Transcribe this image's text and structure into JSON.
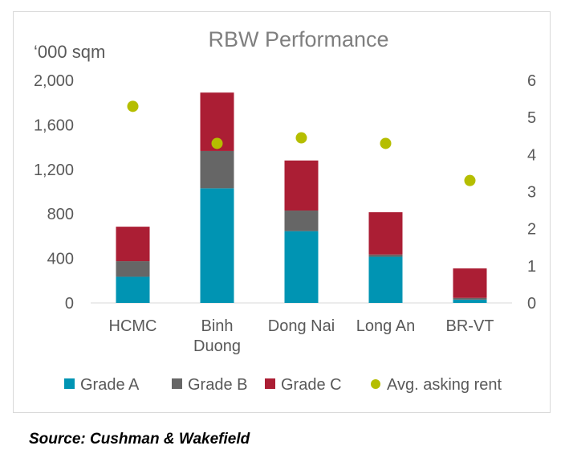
{
  "chart_data": {
    "type": "bar",
    "title": "RBW Performance",
    "ylabel": "‘000 sqm",
    "ylim": [
      0,
      2000
    ],
    "y_ticks": [
      "0",
      "400",
      "800",
      "1,200",
      "1,600",
      "2,000"
    ],
    "y2lim": [
      0,
      6
    ],
    "y2_ticks": [
      "0",
      "1",
      "2",
      "3",
      "4",
      "5",
      "6"
    ],
    "categories": [
      "HCMC",
      "Binh\nDuong",
      "Dong Nai",
      "Long An",
      "BR-VT"
    ],
    "series": [
      {
        "name": "Grade A",
        "kind": "stacked-bar",
        "color": "#0094b3",
        "values": [
          235,
          1030,
          645,
          415,
          30
        ]
      },
      {
        "name": "Grade B",
        "kind": "stacked-bar",
        "color": "#666666",
        "values": [
          140,
          335,
          185,
          20,
          15
        ]
      },
      {
        "name": "Grade C",
        "kind": "stacked-bar",
        "color": "#ab1e34",
        "values": [
          310,
          525,
          450,
          380,
          265
        ]
      },
      {
        "name": "Avg. asking rent",
        "kind": "scatter",
        "axis": "right",
        "color": "#b5be00",
        "values": [
          5.3,
          4.3,
          4.45,
          4.3,
          3.3
        ]
      }
    ],
    "grid": false,
    "legend": "bottom"
  },
  "source_note": "Source: Cushman & Wakefield"
}
